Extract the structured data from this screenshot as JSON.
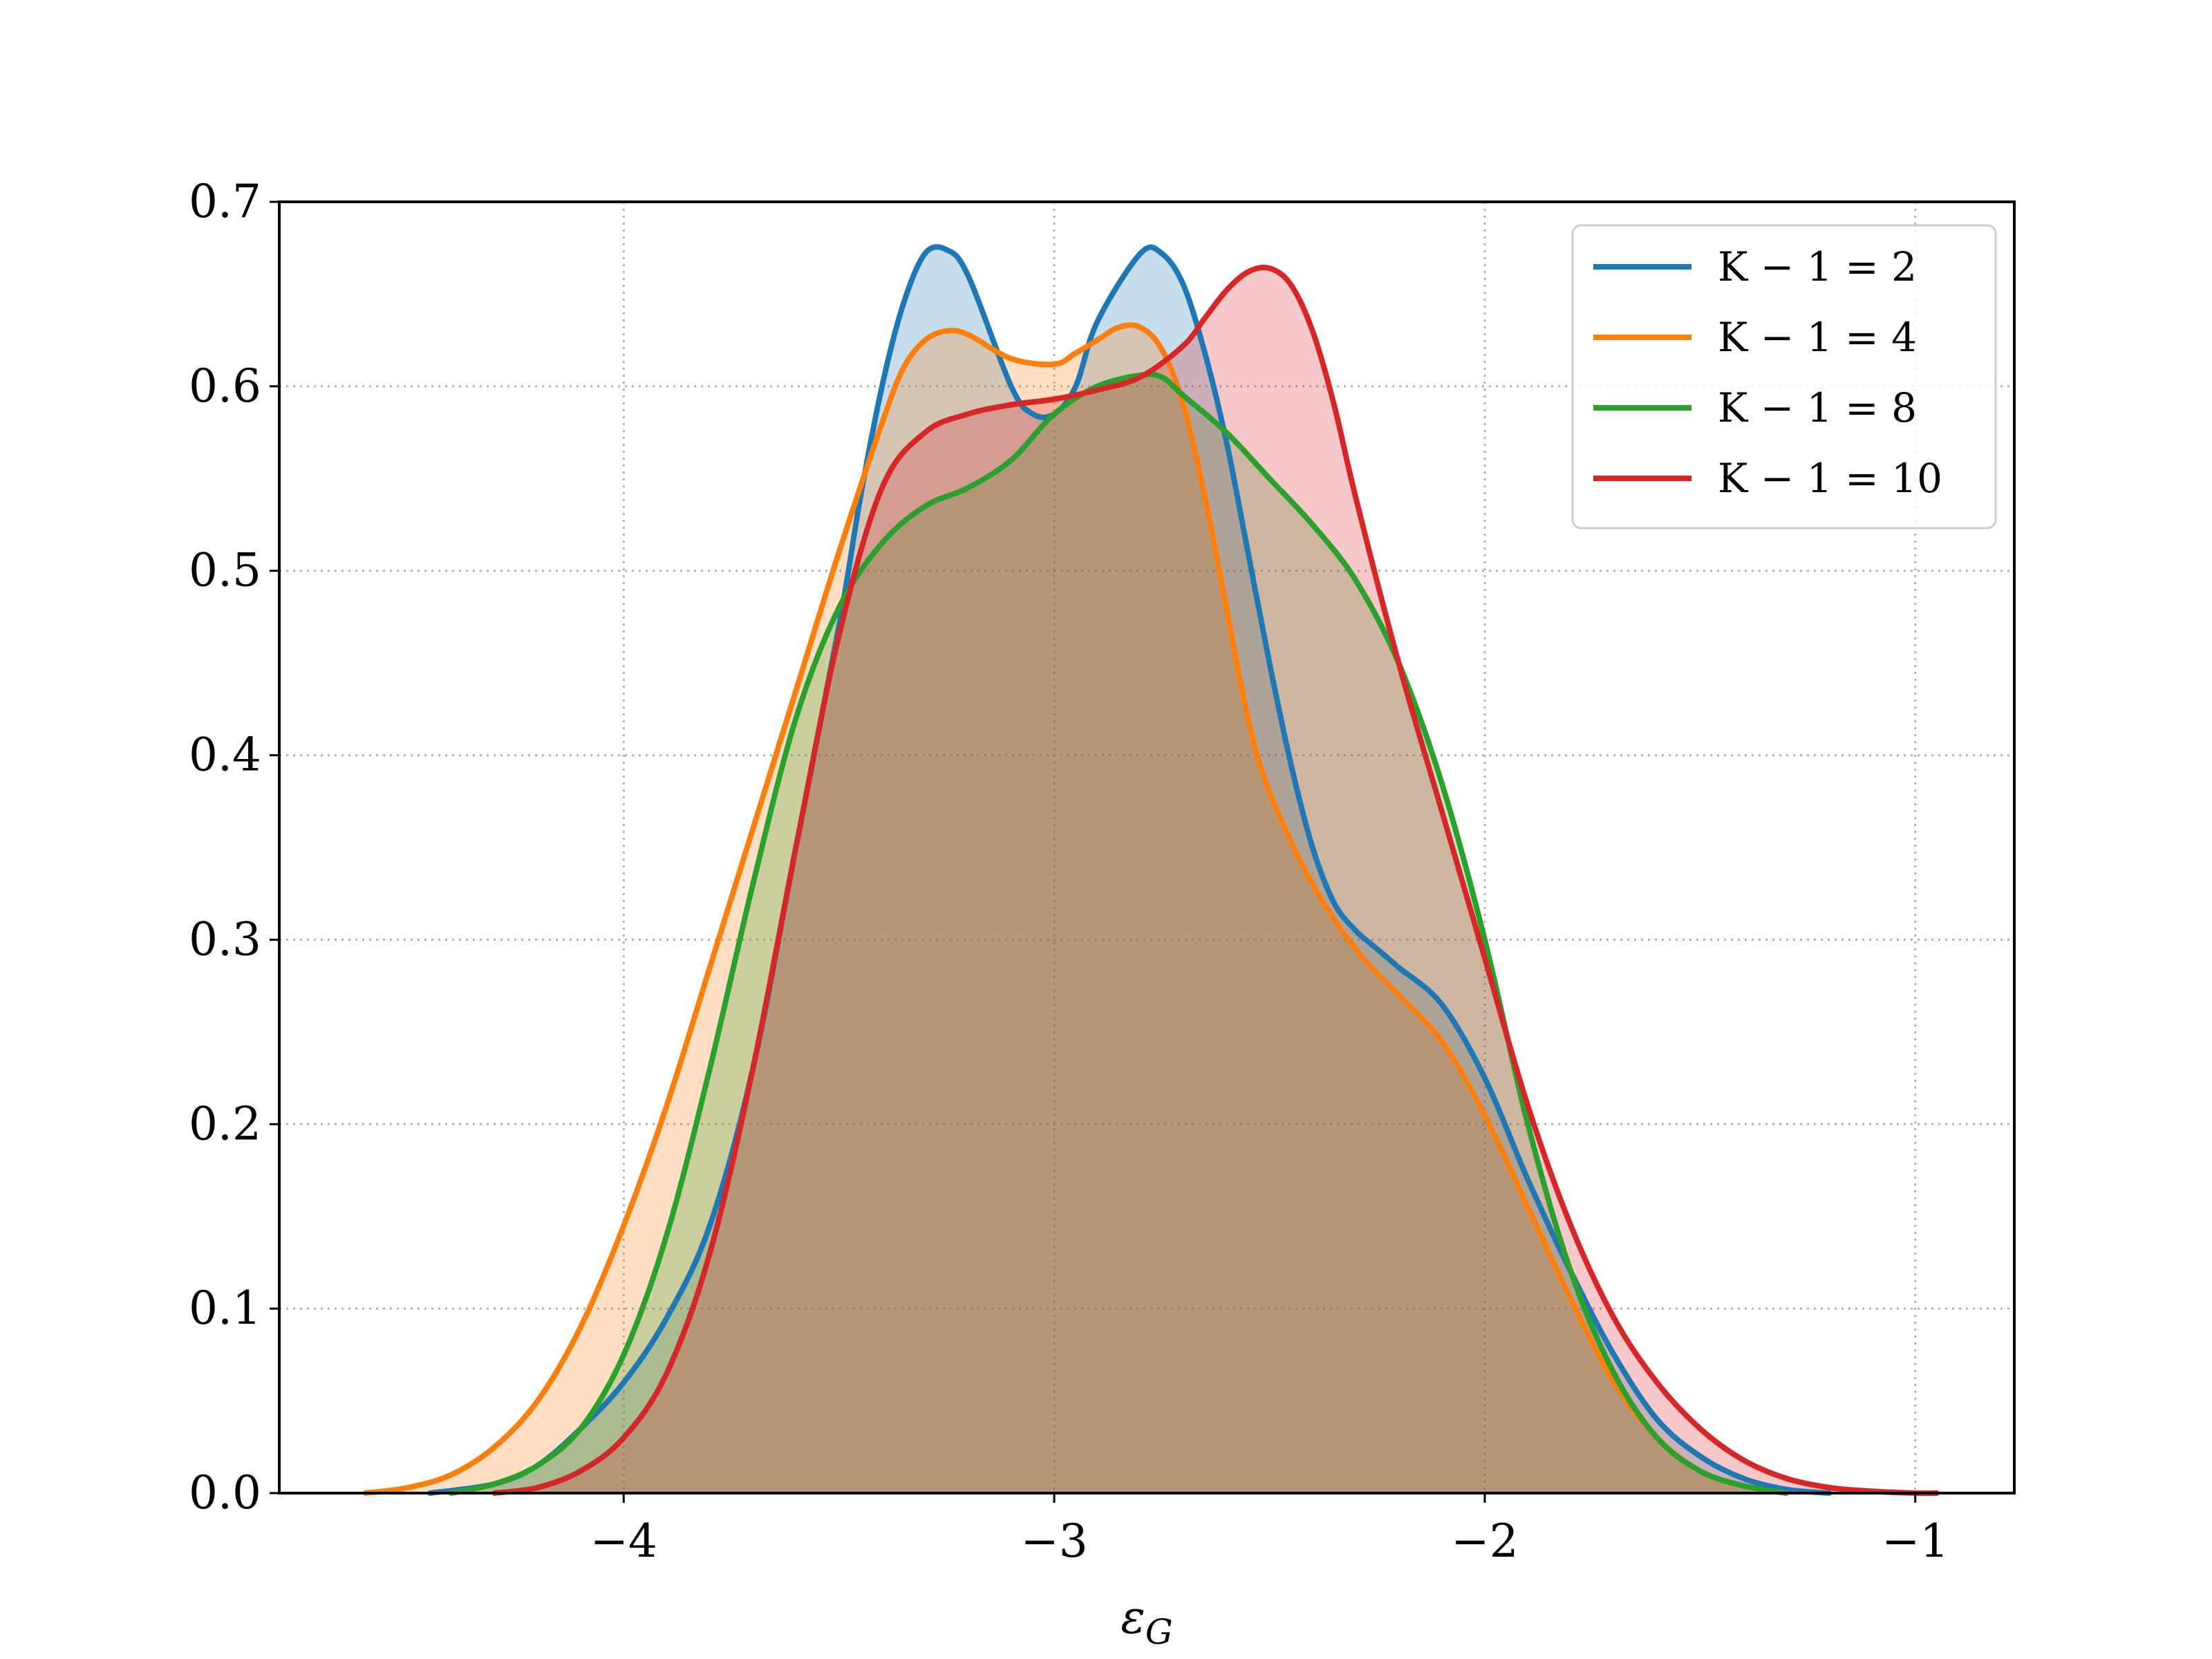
{
  "chart_data": {
    "type": "area",
    "title": "",
    "xlabel": "ε",
    "xlabel_subscript": "G",
    "ylabel": "",
    "xlim": [
      -4.8,
      -0.77
    ],
    "ylim": [
      0,
      0.7
    ],
    "xticks": [
      -4,
      -3,
      -2,
      -1
    ],
    "xtick_labels": [
      "−4",
      "−3",
      "−2",
      "−1"
    ],
    "yticks": [
      0,
      0.1,
      0.2,
      0.3,
      0.4,
      0.5,
      0.6,
      0.7
    ],
    "ytick_labels": [
      "0.0",
      "0.1",
      "0.2",
      "0.3",
      "0.4",
      "0.5",
      "0.6",
      "0.7"
    ],
    "grid": true,
    "legend_position": "top-right",
    "series": [
      {
        "name": "K − 1 = 2",
        "color": "#1f77b4",
        "x": [
          -4.45,
          -4.3,
          -4.2,
          -4.1,
          -4.0,
          -3.9,
          -3.8,
          -3.7,
          -3.6,
          -3.5,
          -3.45,
          -3.4,
          -3.35,
          -3.3,
          -3.25,
          -3.2,
          -3.1,
          -3.05,
          -3.0,
          -2.95,
          -2.9,
          -2.8,
          -2.75,
          -2.7,
          -2.65,
          -2.6,
          -2.55,
          -2.5,
          -2.45,
          -2.4,
          -2.35,
          -2.3,
          -2.25,
          -2.2,
          -2.1,
          -2.0,
          -1.9,
          -1.8,
          -1.7,
          -1.6,
          -1.5,
          -1.4,
          -1.3,
          -1.2
        ],
        "y": [
          0.0,
          0.005,
          0.015,
          0.035,
          0.06,
          0.095,
          0.145,
          0.23,
          0.35,
          0.47,
          0.54,
          0.6,
          0.645,
          0.672,
          0.674,
          0.66,
          0.6,
          0.585,
          0.585,
          0.6,
          0.635,
          0.672,
          0.672,
          0.655,
          0.618,
          0.57,
          0.51,
          0.45,
          0.395,
          0.35,
          0.32,
          0.305,
          0.295,
          0.285,
          0.265,
          0.225,
          0.17,
          0.12,
          0.075,
          0.04,
          0.02,
          0.008,
          0.002,
          0.0
        ]
      },
      {
        "name": "K − 1 = 4",
        "color": "#ff7f0e",
        "x": [
          -4.6,
          -4.5,
          -4.4,
          -4.3,
          -4.2,
          -4.1,
          -4.0,
          -3.9,
          -3.8,
          -3.7,
          -3.6,
          -3.5,
          -3.4,
          -3.35,
          -3.3,
          -3.25,
          -3.2,
          -3.1,
          -3.0,
          -2.95,
          -2.9,
          -2.85,
          -2.8,
          -2.75,
          -2.7,
          -2.65,
          -2.6,
          -2.55,
          -2.5,
          -2.4,
          -2.3,
          -2.2,
          -2.1,
          -2.0,
          -1.9,
          -1.8,
          -1.7,
          -1.6,
          -1.5,
          -1.4,
          -1.3
        ],
        "y": [
          0.0,
          0.003,
          0.01,
          0.025,
          0.05,
          0.09,
          0.145,
          0.21,
          0.285,
          0.36,
          0.435,
          0.51,
          0.58,
          0.61,
          0.625,
          0.63,
          0.628,
          0.615,
          0.612,
          0.618,
          0.625,
          0.632,
          0.632,
          0.62,
          0.59,
          0.54,
          0.48,
          0.42,
          0.38,
          0.33,
          0.295,
          0.27,
          0.245,
          0.205,
          0.155,
          0.105,
          0.06,
          0.03,
          0.012,
          0.004,
          0.0
        ]
      },
      {
        "name": "K − 1 = 8",
        "color": "#2ca02c",
        "x": [
          -4.4,
          -4.3,
          -4.2,
          -4.1,
          -4.0,
          -3.9,
          -3.8,
          -3.7,
          -3.6,
          -3.5,
          -3.4,
          -3.3,
          -3.2,
          -3.1,
          -3.0,
          -2.9,
          -2.8,
          -2.75,
          -2.7,
          -2.6,
          -2.5,
          -2.4,
          -2.3,
          -2.2,
          -2.1,
          -2.0,
          -1.9,
          -1.8,
          -1.7,
          -1.6,
          -1.5,
          -1.4,
          -1.3
        ],
        "y": [
          0.0,
          0.005,
          0.015,
          0.035,
          0.075,
          0.14,
          0.23,
          0.33,
          0.42,
          0.48,
          0.515,
          0.535,
          0.545,
          0.56,
          0.585,
          0.6,
          0.606,
          0.605,
          0.595,
          0.575,
          0.55,
          0.525,
          0.495,
          0.45,
          0.385,
          0.3,
          0.2,
          0.12,
          0.065,
          0.03,
          0.012,
          0.004,
          0.0
        ]
      },
      {
        "name": "K − 1 = 10",
        "color": "#d62728",
        "x": [
          -4.3,
          -4.2,
          -4.1,
          -4.0,
          -3.9,
          -3.8,
          -3.7,
          -3.6,
          -3.5,
          -3.4,
          -3.3,
          -3.2,
          -3.1,
          -3.0,
          -2.9,
          -2.8,
          -2.7,
          -2.65,
          -2.6,
          -2.55,
          -2.5,
          -2.45,
          -2.4,
          -2.35,
          -2.3,
          -2.2,
          -2.1,
          -2.0,
          -1.9,
          -1.8,
          -1.7,
          -1.6,
          -1.5,
          -1.4,
          -1.3,
          -1.2,
          -1.1,
          -1.0,
          -0.95
        ],
        "y": [
          0.0,
          0.003,
          0.012,
          0.03,
          0.065,
          0.13,
          0.23,
          0.35,
          0.465,
          0.545,
          0.575,
          0.585,
          0.59,
          0.593,
          0.598,
          0.605,
          0.622,
          0.637,
          0.652,
          0.662,
          0.664,
          0.655,
          0.63,
          0.59,
          0.54,
          0.45,
          0.37,
          0.29,
          0.21,
          0.145,
          0.095,
          0.06,
          0.035,
          0.018,
          0.008,
          0.003,
          0.001,
          0.0,
          0.0
        ]
      }
    ]
  }
}
